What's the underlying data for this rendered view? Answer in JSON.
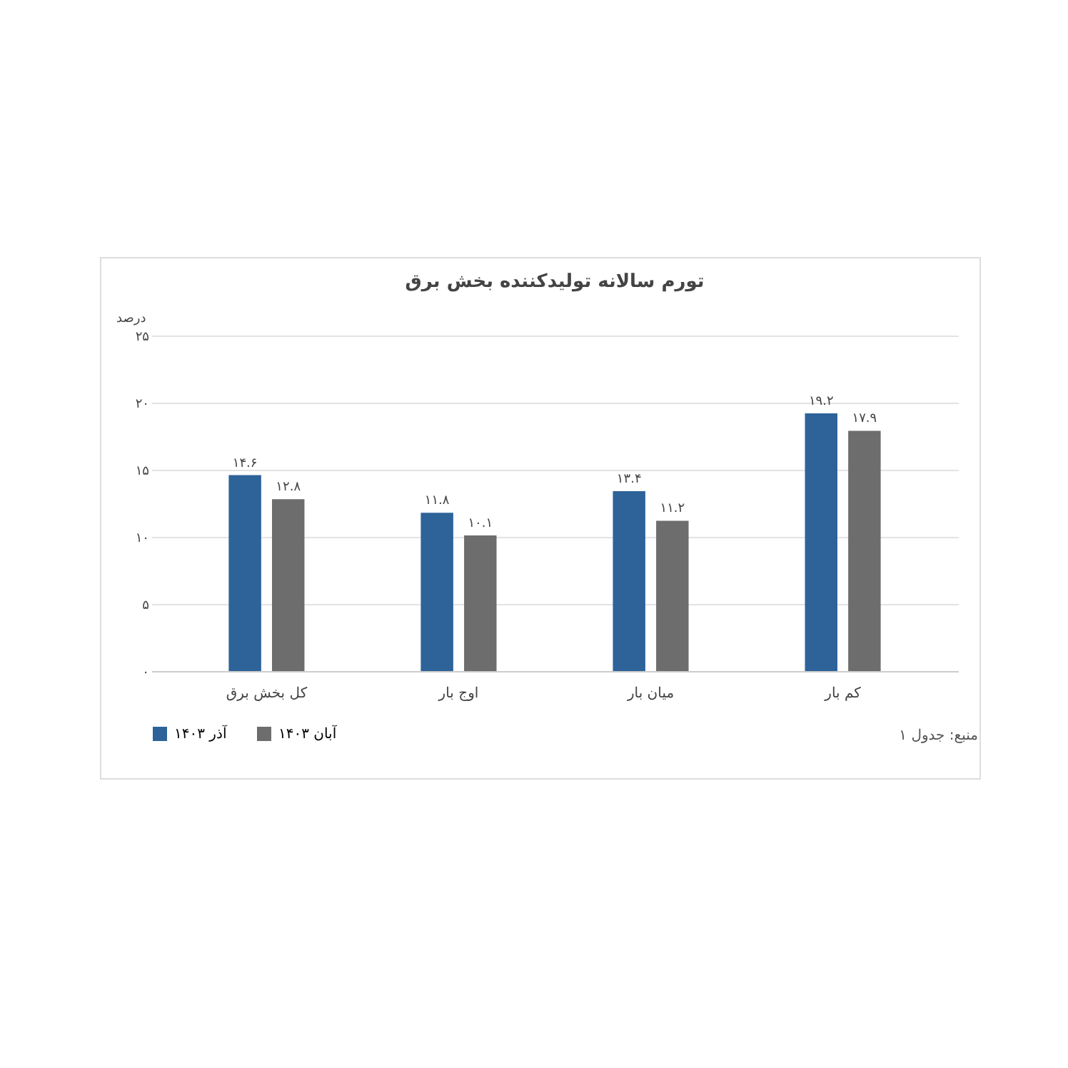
{
  "chart_data": {
    "type": "bar",
    "title": "تورم سالانه تولیدکننده بخش برق",
    "ylabel": "درصد",
    "categories": [
      "کل بخش برق",
      "اوج بار",
      "میان بار",
      "کم بار"
    ],
    "series": [
      {
        "name": "آذر ۱۴۰۳",
        "color": "#2e6399",
        "values": [
          14.6,
          11.8,
          13.4,
          19.2
        ],
        "value_labels": [
          "۱۴.۶",
          "۱۱.۸",
          "۱۳.۴",
          "۱۹.۲"
        ]
      },
      {
        "name": "آبان ۱۴۰۳",
        "color": "#6d6d6d",
        "values": [
          12.8,
          10.1,
          11.2,
          17.9
        ],
        "value_labels": [
          "۱۲.۸",
          "۱۰.۱",
          "۱۱.۲",
          "۱۷.۹"
        ]
      }
    ],
    "ylim": [
      0,
      25
    ],
    "yticks": [
      {
        "value": 0,
        "label": "۰"
      },
      {
        "value": 5,
        "label": "۵"
      },
      {
        "value": 10,
        "label": "۱۰"
      },
      {
        "value": 15,
        "label": "۱۵"
      },
      {
        "value": 20,
        "label": "۲۰"
      },
      {
        "value": 25,
        "label": "۲۵"
      }
    ],
    "grid": "y",
    "legend": "bottom",
    "annotations": [
      "منبع: جدول ۱"
    ]
  }
}
